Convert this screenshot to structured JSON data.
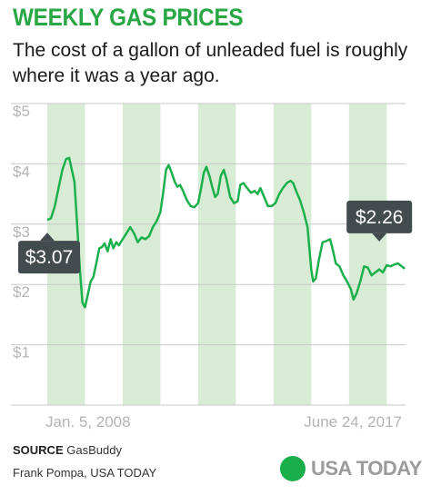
{
  "header": {
    "title": "WEEKLY GAS PRICES",
    "subtitle": "The cost of a gallon of unleaded fuel is roughly where it was a year ago."
  },
  "footer": {
    "source_label": "SOURCE",
    "source_name": "GasBuddy",
    "credit": "Frank Pompa, USA TODAY",
    "brand": "USA TODAY"
  },
  "colors": {
    "title": "#29a744",
    "line": "#1cb04c",
    "band": "#d8ecd5",
    "grid": "#c9c9c9",
    "tick": "#b5b5b5",
    "callout": "#424b4d",
    "brand": "#1aaf4a"
  },
  "chart_data": {
    "type": "line",
    "x_start_label": "Jan. 5, 2008",
    "x_end_label": "June 24, 2017",
    "yticks": [
      {
        "value": 1,
        "label": "$1"
      },
      {
        "value": 2,
        "label": "$2"
      },
      {
        "value": 3,
        "label": "$3"
      },
      {
        "value": 4,
        "label": "$4"
      },
      {
        "value": 5,
        "label": "$5"
      }
    ],
    "ylim": [
      0,
      5
    ],
    "xlim": [
      2008.0,
      2017.5
    ],
    "shaded_years": [
      2008,
      2010,
      2012,
      2014,
      2016
    ],
    "start_callout": "$3.07",
    "end_callout": "$2.26",
    "series": [
      {
        "x": [
          2008.0,
          2008.1,
          2008.2,
          2008.3,
          2008.4,
          2008.5,
          2008.58,
          2008.65,
          2008.72,
          2008.8,
          2008.87,
          2008.93,
          2009.0,
          2009.08,
          2009.15,
          2009.22,
          2009.3,
          2009.38,
          2009.45,
          2009.52,
          2009.6,
          2009.68,
          2009.75,
          2009.83,
          2009.9,
          2010.0,
          2010.1,
          2010.2,
          2010.3,
          2010.4,
          2010.5,
          2010.6,
          2010.7,
          2010.8,
          2010.9,
          2011.0,
          2011.08,
          2011.15,
          2011.22,
          2011.3,
          2011.38,
          2011.45,
          2011.52,
          2011.6,
          2011.7,
          2011.8,
          2011.9,
          2012.0,
          2012.08,
          2012.15,
          2012.22,
          2012.3,
          2012.38,
          2012.45,
          2012.52,
          2012.6,
          2012.68,
          2012.75,
          2012.85,
          2012.95,
          2013.05,
          2013.12,
          2013.2,
          2013.3,
          2013.4,
          2013.5,
          2013.58,
          2013.65,
          2013.75,
          2013.85,
          2013.95,
          2014.05,
          2014.15,
          2014.25,
          2014.35,
          2014.45,
          2014.52,
          2014.6,
          2014.7,
          2014.8,
          2014.9,
          2015.0,
          2015.05,
          2015.12,
          2015.2,
          2015.3,
          2015.4,
          2015.5,
          2015.58,
          2015.65,
          2015.75,
          2015.85,
          2015.95,
          2016.05,
          2016.12,
          2016.2,
          2016.3,
          2016.4,
          2016.5,
          2016.6,
          2016.7,
          2016.8,
          2016.9,
          2017.0,
          2017.1,
          2017.2,
          2017.3,
          2017.4,
          2017.48
        ],
        "y": [
          3.07,
          3.1,
          3.3,
          3.6,
          3.9,
          4.08,
          4.1,
          3.9,
          3.7,
          2.9,
          2.2,
          1.7,
          1.62,
          1.85,
          2.05,
          2.12,
          2.35,
          2.6,
          2.62,
          2.68,
          2.55,
          2.75,
          2.6,
          2.7,
          2.65,
          2.75,
          2.85,
          2.95,
          2.85,
          2.7,
          2.78,
          2.75,
          2.8,
          2.95,
          3.05,
          3.2,
          3.55,
          3.9,
          3.98,
          3.85,
          3.7,
          3.62,
          3.65,
          3.55,
          3.4,
          3.3,
          3.28,
          3.35,
          3.6,
          3.85,
          3.95,
          3.8,
          3.6,
          3.45,
          3.5,
          3.8,
          3.9,
          3.75,
          3.45,
          3.35,
          3.38,
          3.65,
          3.68,
          3.6,
          3.52,
          3.55,
          3.5,
          3.6,
          3.45,
          3.3,
          3.3,
          3.35,
          3.5,
          3.6,
          3.68,
          3.72,
          3.68,
          3.55,
          3.4,
          3.2,
          2.95,
          2.25,
          2.05,
          2.1,
          2.4,
          2.7,
          2.72,
          2.75,
          2.55,
          2.35,
          2.3,
          2.15,
          2.05,
          1.92,
          1.75,
          1.85,
          2.05,
          2.3,
          2.28,
          2.15,
          2.2,
          2.25,
          2.2,
          2.32,
          2.3,
          2.33,
          2.35,
          2.3,
          2.26
        ]
      }
    ]
  }
}
